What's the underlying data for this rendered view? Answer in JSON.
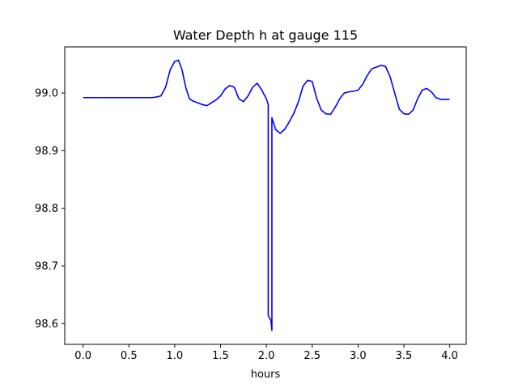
{
  "chart_data": {
    "type": "line",
    "title": "Water Depth h at gauge 115",
    "xlabel": "hours",
    "ylabel": "",
    "xlim": [
      -0.2,
      4.18
    ],
    "ylim": [
      98.564,
      99.08
    ],
    "xticks": [
      0.0,
      0.5,
      1.0,
      1.5,
      2.0,
      2.5,
      3.0,
      3.5,
      4.0
    ],
    "xtick_labels": [
      "0.0",
      "0.5",
      "1.0",
      "1.5",
      "2.0",
      "2.5",
      "3.0",
      "3.5",
      "4.0"
    ],
    "yticks": [
      98.6,
      98.7,
      98.8,
      98.9,
      99.0
    ],
    "ytick_labels": [
      "98.6",
      "98.7",
      "98.8",
      "98.9",
      "99.0"
    ],
    "grid": false,
    "legend": "none",
    "series": [
      {
        "color": "#0000ff",
        "x": [
          0.0,
          0.2,
          0.4,
          0.6,
          0.75,
          0.8,
          0.85,
          0.9,
          0.95,
          1.0,
          1.04,
          1.08,
          1.12,
          1.16,
          1.2,
          1.3,
          1.35,
          1.4,
          1.45,
          1.5,
          1.55,
          1.6,
          1.65,
          1.7,
          1.75,
          1.8,
          1.85,
          1.9,
          1.95,
          2.0,
          2.02,
          2.02,
          2.05,
          2.06,
          2.06,
          2.1,
          2.15,
          2.2,
          2.25,
          2.3,
          2.35,
          2.4,
          2.45,
          2.5,
          2.55,
          2.6,
          2.65,
          2.7,
          2.75,
          2.8,
          2.85,
          2.9,
          2.95,
          3.0,
          3.05,
          3.1,
          3.15,
          3.2,
          3.25,
          3.3,
          3.35,
          3.4,
          3.45,
          3.5,
          3.55,
          3.6,
          3.65,
          3.7,
          3.75,
          3.8,
          3.85,
          3.9,
          3.95,
          4.0
        ],
        "y": [
          98.992,
          98.992,
          98.992,
          98.992,
          98.992,
          98.993,
          98.995,
          99.01,
          99.04,
          99.055,
          99.057,
          99.04,
          99.01,
          98.99,
          98.986,
          98.98,
          98.978,
          98.983,
          98.988,
          98.995,
          99.007,
          99.013,
          99.01,
          98.99,
          98.985,
          98.995,
          99.01,
          99.017,
          99.005,
          98.99,
          98.98,
          98.614,
          98.605,
          98.588,
          98.957,
          98.937,
          98.93,
          98.937,
          98.95,
          98.965,
          98.985,
          99.012,
          99.022,
          99.02,
          98.99,
          98.97,
          98.964,
          98.963,
          98.975,
          98.99,
          99.0,
          99.002,
          99.003,
          99.005,
          99.015,
          99.03,
          99.042,
          99.045,
          99.048,
          99.046,
          99.028,
          99.0,
          98.972,
          98.964,
          98.963,
          98.97,
          98.99,
          99.005,
          99.008,
          99.002,
          98.992,
          98.989,
          98.989,
          98.989
        ]
      }
    ]
  }
}
